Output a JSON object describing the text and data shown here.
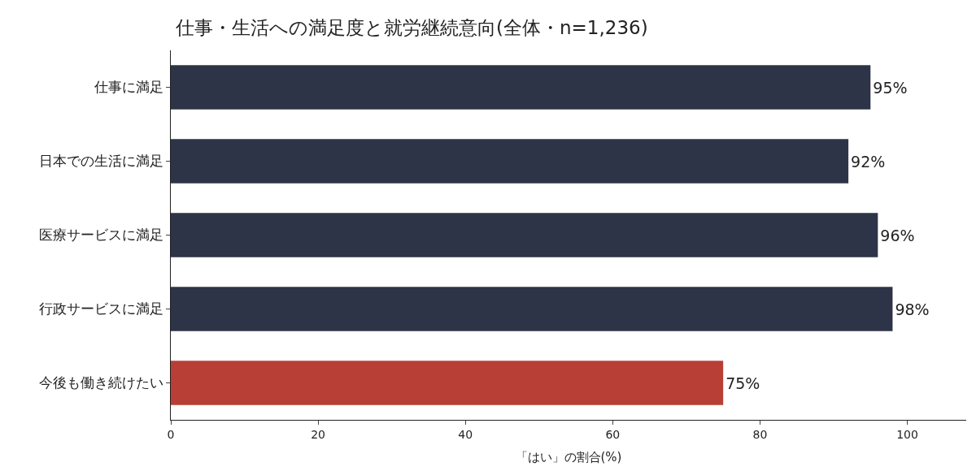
{
  "chart_data": {
    "type": "bar",
    "orientation": "horizontal",
    "title": "仕事・生活への満足度と就労継続意向(全体・n=1,236)",
    "xlabel": "「はい」の割合(%)",
    "categories": [
      "仕事に満足",
      "日本での生活に満足",
      "医療サービスに満足",
      "行政サービスに満足",
      "今後も働き続けたい"
    ],
    "values": [
      95,
      92,
      96,
      98,
      75
    ],
    "colors": [
      "#2e3447",
      "#2e3447",
      "#2e3447",
      "#2e3447",
      "#b83f35"
    ],
    "value_labels": [
      "95%",
      "92%",
      "96%",
      "98%",
      "75%"
    ],
    "xlim": [
      0,
      108
    ],
    "xticks": [
      0,
      20,
      40,
      60,
      80,
      100
    ],
    "legend": false
  }
}
